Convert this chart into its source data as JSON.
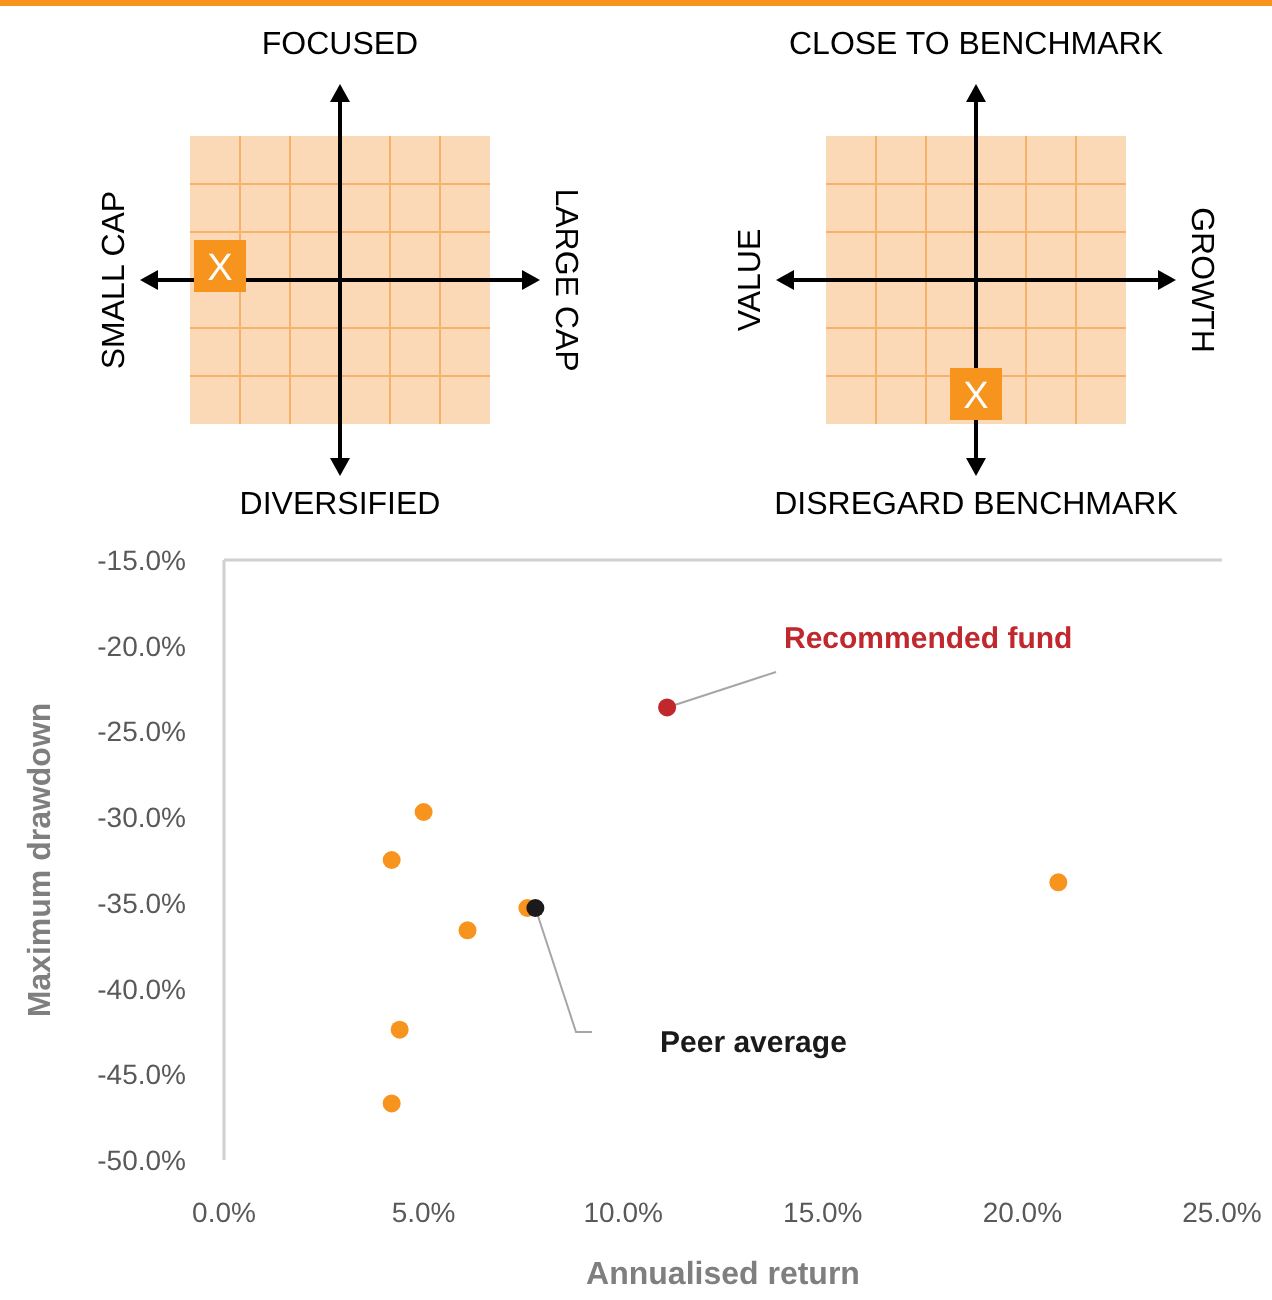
{
  "chart_data": [
    {
      "type": "other",
      "annotations": [
        "FOCUSED",
        "DIVERSIFIED",
        "SMALL CAP",
        "LARGE CAP",
        "X"
      ]
    },
    {
      "type": "other",
      "annotations": [
        "CLOSE TO BENCHMARK",
        "DISREGARD BENCHMARK",
        "VALUE",
        "GROWTH",
        "X"
      ]
    },
    {
      "type": "scatter",
      "xlabel": "Annualised return",
      "ylabel": "Maximum drawdown",
      "xlim": [
        0,
        25
      ],
      "ylim": [
        -50,
        -15
      ],
      "xticks": [
        {
          "value": 0,
          "label": "0.0%"
        },
        {
          "value": 5,
          "label": "5.0%"
        },
        {
          "value": 10,
          "label": "10.0%"
        },
        {
          "value": 15,
          "label": "15.0%"
        },
        {
          "value": 20,
          "label": "20.0%"
        },
        {
          "value": 25,
          "label": "25.0%"
        }
      ],
      "yticks": [
        {
          "value": -50,
          "label": "-50.0%"
        },
        {
          "value": -45,
          "label": "-45.0%"
        },
        {
          "value": -40,
          "label": "-40.0%"
        },
        {
          "value": -35,
          "label": "-35.0%"
        },
        {
          "value": -30,
          "label": "-30.0%"
        },
        {
          "value": -25,
          "label": "-25.0%"
        },
        {
          "value": -20,
          "label": "-20.0%"
        },
        {
          "value": -15,
          "label": "-15.0%"
        }
      ],
      "grid": false,
      "legend": false,
      "marker": "circle",
      "series": [
        {
          "color": "#f7941d",
          "x": [
            4.2,
            5.0,
            4.2,
            4.4,
            6.1,
            7.6,
            20.9
          ],
          "values": [
            -32.5,
            -29.7,
            -46.7,
            -42.4,
            -36.6,
            -35.3,
            -33.8
          ]
        },
        {
          "name": "Recommended fund",
          "color": "#c0282d",
          "x": [
            11.1
          ],
          "values": [
            -23.6
          ]
        },
        {
          "name": "Peer average",
          "color": "#1a1a1a",
          "x": [
            7.8
          ],
          "values": [
            -35.3
          ]
        }
      ]
    }
  ]
}
